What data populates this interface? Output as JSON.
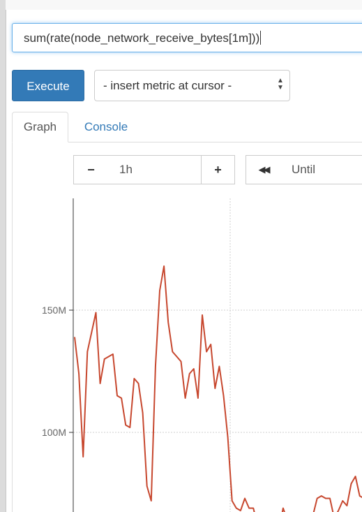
{
  "query": {
    "expression": "sum(rate(node_network_receive_bytes[1m]))"
  },
  "toolbar": {
    "execute_label": "Execute",
    "metric_select_value": "- insert metric at cursor -"
  },
  "tabs": [
    {
      "label": "Graph",
      "active": true
    },
    {
      "label": "Console",
      "active": false
    }
  ],
  "graph_controls": {
    "minus_label": "−",
    "range_value": "1h",
    "plus_label": "+",
    "back_label": "◀◀",
    "until_placeholder": "Until"
  },
  "colors": {
    "accent": "#337ab7",
    "series": "#c7472e",
    "grid": "#cfcfcf"
  },
  "chart_data": {
    "type": "line",
    "title": "",
    "xlabel": "",
    "ylabel": "",
    "y_ticks": [
      {
        "value": 150000000,
        "label": "150M"
      },
      {
        "value": 100000000,
        "label": "100M"
      }
    ],
    "grid": true,
    "series": [
      {
        "values": [
          139,
          124,
          90,
          133,
          141,
          149,
          120,
          130,
          131,
          132,
          115,
          114,
          103,
          102,
          122,
          120,
          108,
          78,
          72,
          127,
          158,
          168,
          145,
          133,
          131,
          129,
          114,
          124,
          126,
          114,
          148,
          133,
          136,
          118,
          127,
          115,
          98,
          72,
          69,
          68,
          73,
          69,
          69,
          62,
          63,
          64,
          62,
          66,
          60,
          69,
          64,
          65,
          62,
          63,
          65,
          67,
          66,
          73,
          74,
          73,
          73,
          65,
          68,
          72,
          70,
          79,
          82,
          74,
          73
        ]
      }
    ]
  }
}
